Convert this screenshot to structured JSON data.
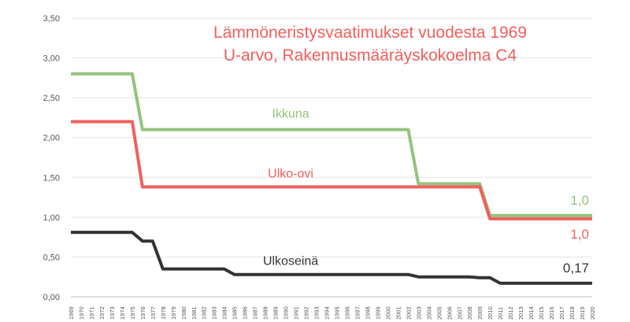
{
  "chart_data": {
    "type": "line",
    "title": "Lämmöneristysvaatimukset vuodesta 1969",
    "subtitle": "U-arvo, Rakennusmääräyskokoelma C4",
    "xlabel": "",
    "ylabel": "",
    "ylim": [
      0,
      3.5
    ],
    "xlim": [
      1969,
      2020
    ],
    "grid": true,
    "legend": "none",
    "y_ticks": [
      "0,00",
      "0,50",
      "1,00",
      "1,50",
      "2,00",
      "2,50",
      "3,00",
      "3,50"
    ],
    "x_ticks": [
      "1969",
      "1970",
      "1971",
      "1972",
      "1973",
      "1974",
      "1975",
      "1976",
      "1977",
      "1978",
      "1979",
      "1980",
      "1981",
      "1982",
      "1983",
      "1984",
      "1985",
      "1986",
      "1987",
      "1988",
      "1989",
      "1990",
      "1991",
      "1992",
      "1993",
      "1994",
      "1995",
      "1996",
      "1997",
      "1998",
      "1999",
      "2000",
      "2001",
      "2002",
      "2003",
      "2004",
      "2005",
      "2006",
      "2007",
      "2008",
      "2009",
      "2010",
      "2011",
      "2012",
      "2013",
      "2014",
      "2015",
      "2016",
      "2017",
      "2018",
      "2019",
      "2020"
    ],
    "series": [
      {
        "name": "Ikkuna",
        "color": "#93c47d",
        "end_label": "1,0",
        "points": [
          [
            1969,
            2.8
          ],
          [
            1975,
            2.8
          ],
          [
            1976,
            2.1
          ],
          [
            2002,
            2.1
          ],
          [
            2003,
            1.42
          ],
          [
            2009,
            1.42
          ],
          [
            2010,
            1.02
          ],
          [
            2020,
            1.02
          ]
        ]
      },
      {
        "name": "Ulko-ovi",
        "color": "#f0605d",
        "end_label": "1,0",
        "points": [
          [
            1969,
            2.2
          ],
          [
            1975,
            2.2
          ],
          [
            1976,
            1.38
          ],
          [
            2009,
            1.38
          ],
          [
            2010,
            0.98
          ],
          [
            2020,
            0.98
          ]
        ]
      },
      {
        "name": "Ulkoseinä",
        "color": "#333333",
        "end_label": "0,17",
        "points": [
          [
            1969,
            0.81
          ],
          [
            1975,
            0.81
          ],
          [
            1976,
            0.7
          ],
          [
            1977,
            0.7
          ],
          [
            1978,
            0.35
          ],
          [
            1984,
            0.35
          ],
          [
            1985,
            0.28
          ],
          [
            2002,
            0.28
          ],
          [
            2003,
            0.25
          ],
          [
            2008,
            0.25
          ],
          [
            2009,
            0.24
          ],
          [
            2010,
            0.24
          ],
          [
            2011,
            0.17
          ],
          [
            2020,
            0.17
          ]
        ]
      }
    ]
  }
}
